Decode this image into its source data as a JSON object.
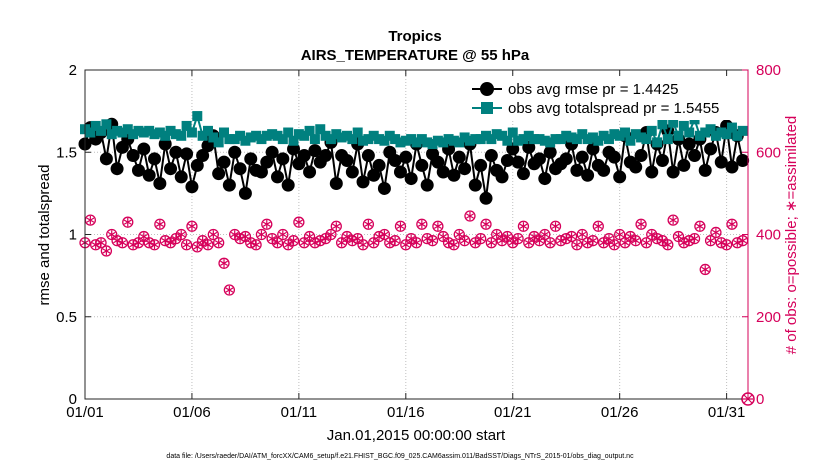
{
  "chart_data": {
    "type": "line",
    "title": "Tropics",
    "subtitle": "AIRS_TEMPERATURE @ 55 hPa",
    "xlabel": "Jan.01,2015 00:00:00 start",
    "ylabel": "rmse and totalspread",
    "y2label": "# of obs: o=possible; ∗=assimilated",
    "footnote": "data file: /Users/raeder/DAI/ATM_forcXX/CAM6_setup/f.e21.FHIST_BGC.f09_025.CAM6assim.011/BadSST/Diags_NTrS_2015-01/obs_diag_output.nc",
    "xlim": [
      1,
      32
    ],
    "ylim": [
      0,
      2
    ],
    "y2lim": [
      0,
      800
    ],
    "x_ticks": [
      1,
      6,
      11,
      16,
      21,
      26,
      31
    ],
    "x_tick_labels": [
      "01/01",
      "01/06",
      "01/11",
      "01/16",
      "01/21",
      "01/26",
      "01/31"
    ],
    "y_tick_labels": [
      "0",
      "0.5",
      "1",
      "1.5",
      "2"
    ],
    "y2_tick_labels": [
      "0",
      "200",
      "400",
      "600",
      "800"
    ],
    "legend_position": "top-right",
    "colors": {
      "rmse": "#000000",
      "spread": "#00807f",
      "obs": "#d6005a"
    },
    "x": [
      1.0,
      1.25,
      1.5,
      1.75,
      2.0,
      2.25,
      2.5,
      2.75,
      3.0,
      3.25,
      3.5,
      3.75,
      4.0,
      4.25,
      4.5,
      4.75,
      5.0,
      5.25,
      5.5,
      5.75,
      6.0,
      6.25,
      6.5,
      6.75,
      7.0,
      7.25,
      7.5,
      7.75,
      8.0,
      8.25,
      8.5,
      8.75,
      9.0,
      9.25,
      9.5,
      9.75,
      10.0,
      10.25,
      10.5,
      10.75,
      11.0,
      11.25,
      11.5,
      11.75,
      12.0,
      12.25,
      12.5,
      12.75,
      13.0,
      13.25,
      13.5,
      13.75,
      14.0,
      14.25,
      14.5,
      14.75,
      15.0,
      15.25,
      15.5,
      15.75,
      16.0,
      16.25,
      16.5,
      16.75,
      17.0,
      17.25,
      17.5,
      17.75,
      18.0,
      18.25,
      18.5,
      18.75,
      19.0,
      19.25,
      19.5,
      19.75,
      20.0,
      20.25,
      20.5,
      20.75,
      21.0,
      21.25,
      21.5,
      21.75,
      22.0,
      22.25,
      22.5,
      22.75,
      23.0,
      23.25,
      23.5,
      23.75,
      24.0,
      24.25,
      24.5,
      24.75,
      25.0,
      25.25,
      25.5,
      25.75,
      26.0,
      26.25,
      26.5,
      26.75,
      27.0,
      27.25,
      27.5,
      27.75,
      28.0,
      28.25,
      28.5,
      28.75,
      29.0,
      29.25,
      29.5,
      29.75,
      30.0,
      30.25,
      30.5,
      30.75,
      31.0,
      31.25,
      31.5,
      31.75
    ],
    "series": [
      {
        "name": "obs avg rmse",
        "legend_label": "obs avg rmse pr = 1.4425",
        "axis": "left",
        "values": [
          1.55,
          1.65,
          1.58,
          1.62,
          1.46,
          1.67,
          1.4,
          1.53,
          1.58,
          1.48,
          1.39,
          1.52,
          1.36,
          1.46,
          1.31,
          1.55,
          1.4,
          1.5,
          1.35,
          1.49,
          1.29,
          1.42,
          1.48,
          1.54,
          1.6,
          1.37,
          1.44,
          1.3,
          1.5,
          1.4,
          1.25,
          1.46,
          1.39,
          1.38,
          1.44,
          1.5,
          1.35,
          1.46,
          1.3,
          1.52,
          1.43,
          1.48,
          1.38,
          1.51,
          1.44,
          1.48,
          1.56,
          1.31,
          1.48,
          1.45,
          1.38,
          1.55,
          1.32,
          1.48,
          1.36,
          1.42,
          1.28,
          1.5,
          1.45,
          1.38,
          1.47,
          1.34,
          1.55,
          1.42,
          1.3,
          1.49,
          1.44,
          1.38,
          1.52,
          1.36,
          1.47,
          1.4,
          1.55,
          1.3,
          1.42,
          1.22,
          1.48,
          1.39,
          1.35,
          1.45,
          1.52,
          1.44,
          1.37,
          1.53,
          1.43,
          1.46,
          1.34,
          1.5,
          1.4,
          1.43,
          1.46,
          1.55,
          1.39,
          1.47,
          1.36,
          1.52,
          1.42,
          1.39,
          1.5,
          1.47,
          1.35,
          1.6,
          1.44,
          1.41,
          1.48,
          1.62,
          1.38,
          1.55,
          1.45,
          1.63,
          1.38,
          1.58,
          1.42,
          1.55,
          1.48,
          1.58,
          1.39,
          1.52,
          1.62,
          1.44,
          1.66,
          1.41,
          1.6,
          1.45
        ],
        "value_note": "pr = 1.4425"
      },
      {
        "name": "obs avg totalspread",
        "legend_label": "obs avg totalspread pr = 1.5455",
        "axis": "left",
        "values": [
          1.64,
          1.62,
          1.66,
          1.63,
          1.67,
          1.61,
          1.63,
          1.62,
          1.64,
          1.61,
          1.63,
          1.62,
          1.63,
          1.61,
          1.62,
          1.6,
          1.63,
          1.61,
          1.6,
          1.66,
          1.62,
          1.72,
          1.6,
          1.63,
          1.59,
          1.56,
          1.62,
          1.58,
          1.58,
          1.6,
          1.57,
          1.59,
          1.6,
          1.58,
          1.6,
          1.61,
          1.6,
          1.58,
          1.62,
          1.57,
          1.61,
          1.6,
          1.63,
          1.58,
          1.64,
          1.6,
          1.58,
          1.61,
          1.59,
          1.6,
          1.58,
          1.62,
          1.57,
          1.58,
          1.6,
          1.58,
          1.57,
          1.6,
          1.58,
          1.56,
          1.57,
          1.58,
          1.56,
          1.58,
          1.56,
          1.55,
          1.57,
          1.56,
          1.58,
          1.57,
          1.56,
          1.59,
          1.57,
          1.58,
          1.58,
          1.6,
          1.58,
          1.61,
          1.6,
          1.57,
          1.62,
          1.57,
          1.58,
          1.6,
          1.58,
          1.58,
          1.57,
          1.56,
          1.58,
          1.58,
          1.6,
          1.59,
          1.58,
          1.61,
          1.58,
          1.59,
          1.57,
          1.6,
          1.58,
          1.61,
          1.6,
          1.62,
          1.57,
          1.61,
          1.59,
          1.58,
          1.63,
          1.56,
          1.67,
          1.58,
          1.68,
          1.6,
          1.66,
          1.62,
          1.7,
          1.6,
          1.62,
          1.64,
          1.6,
          1.62,
          1.61,
          1.65,
          1.6,
          1.63
        ],
        "value_note": "pr = 1.5455"
      },
      {
        "name": "# obs possible",
        "axis": "right",
        "marker": "circle",
        "values": [
          380,
          435,
          375,
          380,
          360,
          400,
          385,
          380,
          430,
          375,
          380,
          395,
          380,
          375,
          425,
          385,
          380,
          390,
          400,
          375,
          420,
          370,
          385,
          375,
          400,
          380,
          330,
          265,
          400,
          390,
          395,
          380,
          375,
          400,
          425,
          390,
          380,
          400,
          375,
          385,
          430,
          380,
          395,
          380,
          385,
          390,
          400,
          420,
          380,
          395,
          385,
          390,
          375,
          425,
          380,
          395,
          400,
          380,
          385,
          420,
          375,
          390,
          380,
          425,
          390,
          385,
          420,
          395,
          380,
          375,
          400,
          385,
          445,
          380,
          390,
          425,
          380,
          400,
          385,
          395,
          380,
          390,
          420,
          380,
          395,
          385,
          400,
          380,
          420,
          385,
          390,
          395,
          375,
          400,
          380,
          385,
          420,
          380,
          390,
          375,
          400,
          380,
          395,
          385,
          425,
          380,
          400,
          390,
          385,
          375,
          435,
          395,
          380,
          385,
          390,
          420,
          315,
          385,
          405,
          380,
          375,
          425,
          380,
          385
        ],
        "value_note": "first value 380, last value 385"
      },
      {
        "name": "# obs assimilated",
        "axis": "right",
        "marker": "asterisk",
        "values": [
          380,
          435,
          375,
          380,
          360,
          400,
          385,
          380,
          430,
          375,
          380,
          395,
          380,
          375,
          425,
          385,
          380,
          390,
          400,
          375,
          420,
          370,
          385,
          375,
          400,
          380,
          330,
          265,
          400,
          390,
          395,
          380,
          375,
          400,
          425,
          390,
          380,
          400,
          375,
          385,
          430,
          380,
          395,
          380,
          385,
          390,
          400,
          420,
          380,
          395,
          385,
          390,
          375,
          425,
          380,
          395,
          400,
          380,
          385,
          420,
          375,
          390,
          380,
          425,
          390,
          385,
          420,
          395,
          380,
          375,
          400,
          385,
          445,
          380,
          390,
          425,
          380,
          400,
          385,
          395,
          380,
          390,
          420,
          380,
          395,
          385,
          400,
          380,
          420,
          385,
          390,
          395,
          375,
          400,
          380,
          385,
          420,
          380,
          390,
          375,
          400,
          380,
          395,
          385,
          425,
          380,
          400,
          390,
          385,
          375,
          435,
          395,
          380,
          385,
          390,
          420,
          315,
          385,
          405,
          380,
          375,
          425,
          380,
          385
        ],
        "value_note": "assimilated overlaps possible"
      }
    ],
    "extra_points": [
      {
        "series": "# obs possible",
        "x": 32,
        "y": 0
      }
    ]
  }
}
